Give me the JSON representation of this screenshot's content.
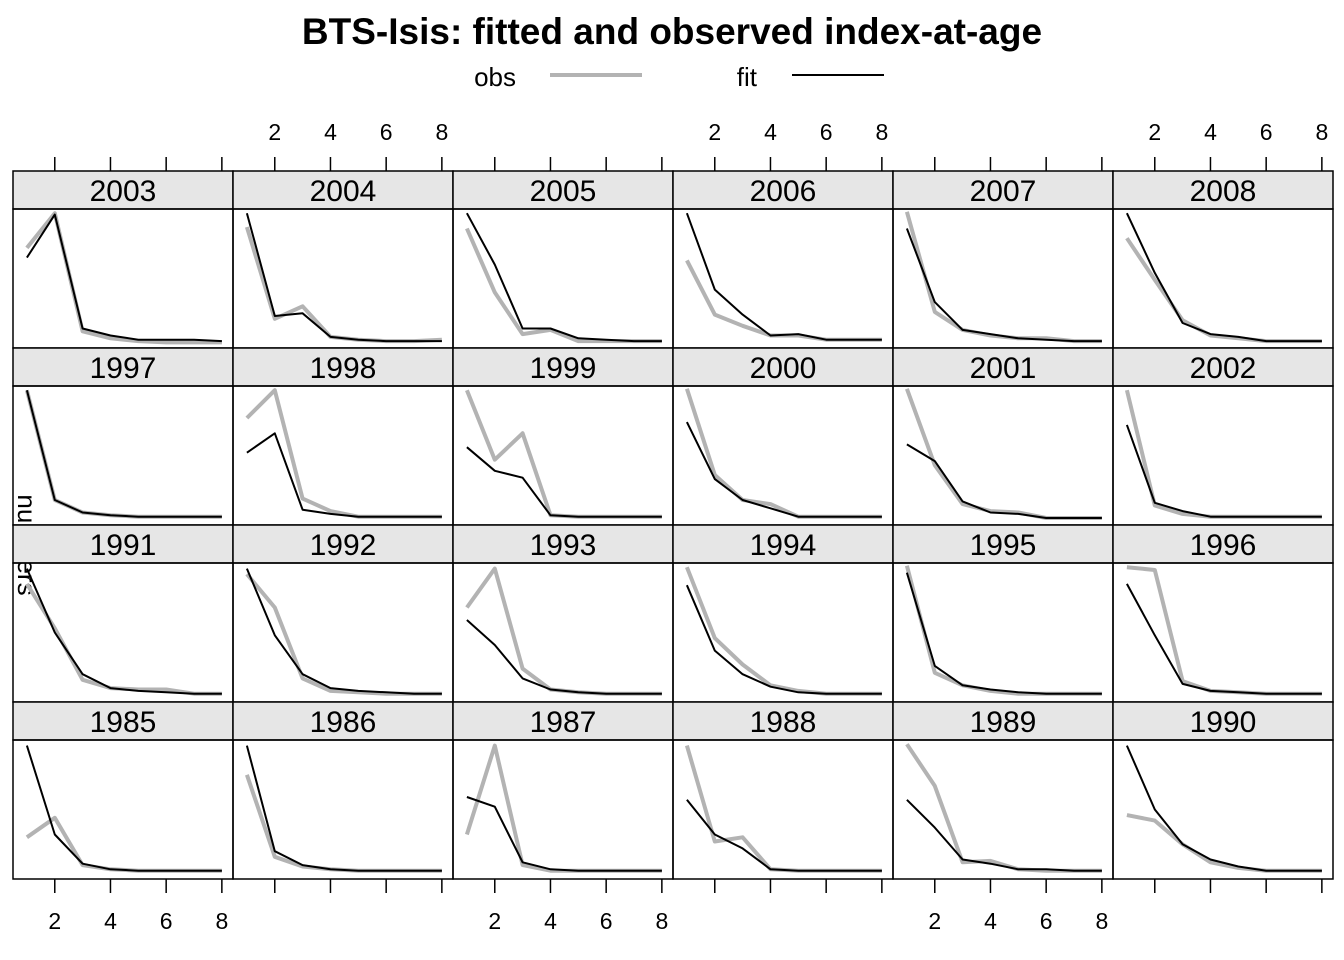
{
  "chart_data": {
    "type": "line",
    "title": "BTS-Isis: fitted and observed index-at-age",
    "ylabel": "numbers",
    "xlabel": "",
    "x": [
      1,
      2,
      3,
      4,
      5,
      6,
      7,
      8
    ],
    "xlim": [
      0.5,
      8.4
    ],
    "x_ticks": [
      2,
      4,
      6,
      8
    ],
    "legend": {
      "placement": "top",
      "entries": [
        {
          "name": "obs",
          "color": "#b3b3b3"
        },
        {
          "name": "fit",
          "color": "#000000"
        }
      ]
    },
    "y_scale": "free per panel (relative, no y tick labels shown)",
    "layout": {
      "columns": 6,
      "rows": 4
    },
    "panels": [
      {
        "year": "2003",
        "obs": [
          0.72,
          0.97,
          0.12,
          0.07,
          0.05,
          0.04,
          0.04,
          0.04
        ],
        "fit": [
          0.65,
          0.96,
          0.14,
          0.09,
          0.06,
          0.06,
          0.06,
          0.05
        ]
      },
      {
        "year": "2004",
        "obs": [
          0.87,
          0.21,
          0.3,
          0.08,
          0.06,
          0.05,
          0.05,
          0.06
        ],
        "fit": [
          0.97,
          0.23,
          0.25,
          0.08,
          0.06,
          0.05,
          0.05,
          0.05
        ]
      },
      {
        "year": "2005",
        "obs": [
          0.86,
          0.4,
          0.1,
          0.13,
          0.05,
          0.05,
          0.05,
          0.05
        ],
        "fit": [
          0.97,
          0.6,
          0.14,
          0.14,
          0.07,
          0.06,
          0.05,
          0.05
        ]
      },
      {
        "year": "2006",
        "obs": [
          0.63,
          0.24,
          0.16,
          0.09,
          0.09,
          0.06,
          0.06,
          0.06
        ],
        "fit": [
          0.97,
          0.42,
          0.24,
          0.09,
          0.1,
          0.06,
          0.06,
          0.06
        ]
      },
      {
        "year": "2007",
        "obs": [
          0.98,
          0.26,
          0.13,
          0.09,
          0.07,
          0.07,
          0.05,
          0.05
        ],
        "fit": [
          0.86,
          0.33,
          0.13,
          0.1,
          0.07,
          0.06,
          0.05,
          0.05
        ]
      },
      {
        "year": "2008",
        "obs": [
          0.79,
          0.49,
          0.2,
          0.09,
          0.07,
          0.05,
          0.05,
          0.05
        ],
        "fit": [
          0.97,
          0.54,
          0.18,
          0.1,
          0.08,
          0.05,
          0.05,
          0.05
        ]
      },
      {
        "year": "1997",
        "obs": [
          0.97,
          0.18,
          0.09,
          0.07,
          0.06,
          0.06,
          0.06,
          0.06
        ],
        "fit": [
          0.97,
          0.18,
          0.09,
          0.07,
          0.06,
          0.06,
          0.06,
          0.06
        ]
      },
      {
        "year": "1998",
        "obs": [
          0.77,
          0.97,
          0.19,
          0.1,
          0.06,
          0.06,
          0.06,
          0.06
        ],
        "fit": [
          0.52,
          0.66,
          0.11,
          0.08,
          0.06,
          0.06,
          0.06,
          0.06
        ]
      },
      {
        "year": "1999",
        "obs": [
          0.97,
          0.47,
          0.66,
          0.07,
          0.06,
          0.06,
          0.06,
          0.06
        ],
        "fit": [
          0.56,
          0.39,
          0.34,
          0.07,
          0.06,
          0.06,
          0.06,
          0.06
        ]
      },
      {
        "year": "2000",
        "obs": [
          0.98,
          0.36,
          0.18,
          0.15,
          0.06,
          0.06,
          0.06,
          0.06
        ],
        "fit": [
          0.74,
          0.33,
          0.18,
          0.12,
          0.06,
          0.06,
          0.06,
          0.06
        ]
      },
      {
        "year": "2001",
        "obs": [
          0.98,
          0.43,
          0.15,
          0.1,
          0.09,
          0.05,
          0.05,
          0.05
        ],
        "fit": [
          0.58,
          0.46,
          0.17,
          0.09,
          0.08,
          0.05,
          0.05,
          0.05
        ]
      },
      {
        "year": "2002",
        "obs": [
          0.97,
          0.14,
          0.08,
          0.06,
          0.06,
          0.06,
          0.06,
          0.06
        ],
        "fit": [
          0.72,
          0.16,
          0.1,
          0.06,
          0.06,
          0.06,
          0.06,
          0.06
        ]
      },
      {
        "year": "1991",
        "obs": [
          0.85,
          0.53,
          0.16,
          0.1,
          0.09,
          0.09,
          0.06,
          0.06
        ],
        "fit": [
          0.96,
          0.5,
          0.2,
          0.1,
          0.08,
          0.07,
          0.06,
          0.06
        ]
      },
      {
        "year": "1992",
        "obs": [
          0.92,
          0.68,
          0.17,
          0.08,
          0.07,
          0.06,
          0.06,
          0.06
        ],
        "fit": [
          0.96,
          0.48,
          0.2,
          0.1,
          0.08,
          0.07,
          0.06,
          0.06
        ]
      },
      {
        "year": "1993",
        "obs": [
          0.68,
          0.96,
          0.24,
          0.09,
          0.07,
          0.06,
          0.06,
          0.06
        ],
        "fit": [
          0.59,
          0.41,
          0.17,
          0.09,
          0.07,
          0.06,
          0.06,
          0.06
        ]
      },
      {
        "year": "1994",
        "obs": [
          0.97,
          0.46,
          0.27,
          0.12,
          0.08,
          0.06,
          0.06,
          0.06
        ],
        "fit": [
          0.84,
          0.37,
          0.2,
          0.11,
          0.07,
          0.06,
          0.06,
          0.06
        ]
      },
      {
        "year": "1995",
        "obs": [
          0.98,
          0.21,
          0.12,
          0.08,
          0.06,
          0.06,
          0.06,
          0.06
        ],
        "fit": [
          0.93,
          0.26,
          0.12,
          0.09,
          0.07,
          0.06,
          0.06,
          0.06
        ]
      },
      {
        "year": "1996",
        "obs": [
          0.97,
          0.95,
          0.15,
          0.08,
          0.07,
          0.06,
          0.06,
          0.06
        ],
        "fit": [
          0.85,
          0.48,
          0.13,
          0.08,
          0.07,
          0.06,
          0.06,
          0.06
        ]
      },
      {
        "year": "1985",
        "obs": [
          0.3,
          0.44,
          0.1,
          0.07,
          0.06,
          0.06,
          0.06,
          0.06
        ],
        "fit": [
          0.96,
          0.32,
          0.11,
          0.07,
          0.06,
          0.06,
          0.06,
          0.06
        ]
      },
      {
        "year": "1986",
        "obs": [
          0.75,
          0.16,
          0.09,
          0.07,
          0.06,
          0.06,
          0.06,
          0.06
        ],
        "fit": [
          0.96,
          0.2,
          0.1,
          0.07,
          0.06,
          0.06,
          0.06,
          0.06
        ]
      },
      {
        "year": "1987",
        "obs": [
          0.32,
          0.96,
          0.1,
          0.06,
          0.06,
          0.06,
          0.06,
          0.06
        ],
        "fit": [
          0.59,
          0.52,
          0.12,
          0.07,
          0.06,
          0.06,
          0.06,
          0.06
        ]
      },
      {
        "year": "1988",
        "obs": [
          0.96,
          0.27,
          0.3,
          0.07,
          0.06,
          0.06,
          0.06,
          0.06
        ],
        "fit": [
          0.57,
          0.32,
          0.22,
          0.07,
          0.06,
          0.06,
          0.06,
          0.06
        ]
      },
      {
        "year": "1989",
        "obs": [
          0.97,
          0.67,
          0.12,
          0.13,
          0.07,
          0.06,
          0.06,
          0.06
        ],
        "fit": [
          0.57,
          0.37,
          0.14,
          0.11,
          0.07,
          0.07,
          0.06,
          0.06
        ]
      },
      {
        "year": "1990",
        "obs": [
          0.46,
          0.42,
          0.25,
          0.12,
          0.08,
          0.06,
          0.06,
          0.06
        ],
        "fit": [
          0.96,
          0.5,
          0.25,
          0.14,
          0.09,
          0.06,
          0.06,
          0.06
        ]
      }
    ]
  }
}
